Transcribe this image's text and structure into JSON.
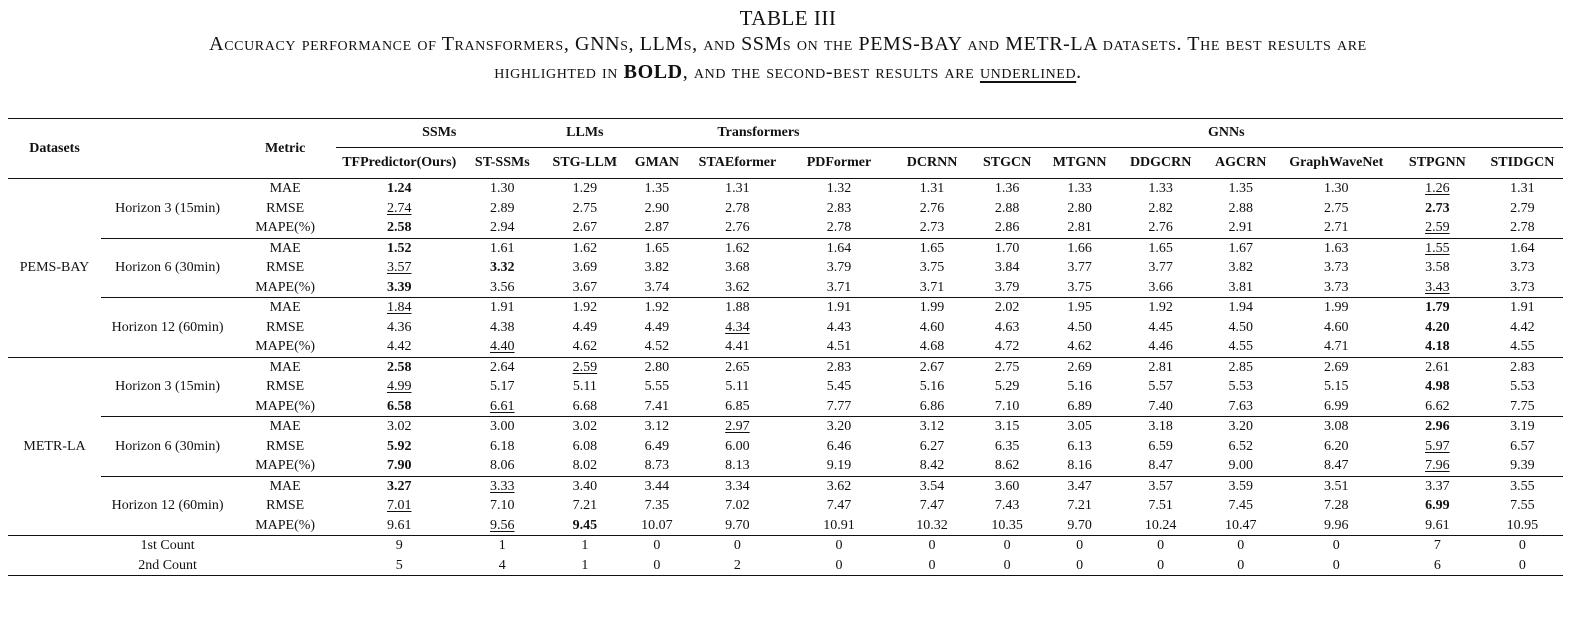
{
  "caption": {
    "title": "TABLE III",
    "line1": "Accuracy performance of Transformers, GNNs, LLMs, and SSMs on the PEMS-BAY and METR-LA datasets. The best results are",
    "line2_pre": "highlighted in ",
    "line2_bold": "BOLD",
    "line2_mid": ", and the second-best results are ",
    "line2_underline": "underlined",
    "line2_post": "."
  },
  "header": {
    "datasets": "Datasets",
    "metric": "Metric",
    "groups": [
      "SSMs",
      "LLMs",
      "Transformers",
      "GNNs"
    ],
    "models": [
      "TFPredictor(Ours)",
      "ST-SSMs",
      "STG-LLM",
      "GMAN",
      "STAEformer",
      "PDFormer",
      "DCRNN",
      "STGCN",
      "MTGNN",
      "DDGCRN",
      "AGCRN",
      "GraphWaveNet",
      "STPGNN",
      "STIDGCN"
    ]
  },
  "datasets": [
    {
      "name": "PEMS-BAY",
      "horizons": [
        {
          "label": "Horizon 3 (15min)",
          "rows": [
            {
              "metric": "MAE",
              "values": [
                "1.24",
                "1.30",
                "1.29",
                "1.35",
                "1.31",
                "1.32",
                "1.31",
                "1.36",
                "1.33",
                "1.33",
                "1.35",
                "1.30",
                "1.26",
                "1.31"
              ],
              "bold": [
                0
              ],
              "under": [
                12
              ]
            },
            {
              "metric": "RMSE",
              "values": [
                "2.74",
                "2.89",
                "2.75",
                "2.90",
                "2.78",
                "2.83",
                "2.76",
                "2.88",
                "2.80",
                "2.82",
                "2.88",
                "2.75",
                "2.73",
                "2.79"
              ],
              "bold": [
                12
              ],
              "under": [
                0
              ]
            },
            {
              "metric": "MAPE(%)",
              "values": [
                "2.58",
                "2.94",
                "2.67",
                "2.87",
                "2.76",
                "2.78",
                "2.73",
                "2.86",
                "2.81",
                "2.76",
                "2.91",
                "2.71",
                "2.59",
                "2.78"
              ],
              "bold": [
                0
              ],
              "under": [
                12
              ]
            }
          ]
        },
        {
          "label": "Horizon 6 (30min)",
          "rows": [
            {
              "metric": "MAE",
              "values": [
                "1.52",
                "1.61",
                "1.62",
                "1.65",
                "1.62",
                "1.64",
                "1.65",
                "1.70",
                "1.66",
                "1.65",
                "1.67",
                "1.63",
                "1.55",
                "1.64"
              ],
              "bold": [
                0
              ],
              "under": [
                12
              ]
            },
            {
              "metric": "RMSE",
              "values": [
                "3.57",
                "3.32",
                "3.69",
                "3.82",
                "3.68",
                "3.79",
                "3.75",
                "3.84",
                "3.77",
                "3.77",
                "3.82",
                "3.73",
                "3.58",
                "3.73"
              ],
              "bold": [
                1
              ],
              "under": [
                0
              ]
            },
            {
              "metric": "MAPE(%)",
              "values": [
                "3.39",
                "3.56",
                "3.67",
                "3.74",
                "3.62",
                "3.71",
                "3.71",
                "3.79",
                "3.75",
                "3.66",
                "3.81",
                "3.73",
                "3.43",
                "3.73"
              ],
              "bold": [
                0
              ],
              "under": [
                12
              ]
            }
          ]
        },
        {
          "label": "Horizon 12 (60min)",
          "rows": [
            {
              "metric": "MAE",
              "values": [
                "1.84",
                "1.91",
                "1.92",
                "1.92",
                "1.88",
                "1.91",
                "1.99",
                "2.02",
                "1.95",
                "1.92",
                "1.94",
                "1.99",
                "1.79",
                "1.91"
              ],
              "bold": [
                12
              ],
              "under": [
                0
              ]
            },
            {
              "metric": "RMSE",
              "values": [
                "4.36",
                "4.38",
                "4.49",
                "4.49",
                "4.34",
                "4.43",
                "4.60",
                "4.63",
                "4.50",
                "4.45",
                "4.50",
                "4.60",
                "4.20",
                "4.42"
              ],
              "bold": [
                12
              ],
              "under": [
                4
              ]
            },
            {
              "metric": "MAPE(%)",
              "values": [
                "4.42",
                "4.40",
                "4.62",
                "4.52",
                "4.41",
                "4.51",
                "4.68",
                "4.72",
                "4.62",
                "4.46",
                "4.55",
                "4.71",
                "4.18",
                "4.55"
              ],
              "bold": [
                12
              ],
              "under": [
                1
              ]
            }
          ]
        }
      ]
    },
    {
      "name": "METR-LA",
      "horizons": [
        {
          "label": "Horizon 3 (15min)",
          "rows": [
            {
              "metric": "MAE",
              "values": [
                "2.58",
                "2.64",
                "2.59",
                "2.80",
                "2.65",
                "2.83",
                "2.67",
                "2.75",
                "2.69",
                "2.81",
                "2.85",
                "2.69",
                "2.61",
                "2.83"
              ],
              "bold": [
                0
              ],
              "under": [
                2
              ]
            },
            {
              "metric": "RMSE",
              "values": [
                "4.99",
                "5.17",
                "5.11",
                "5.55",
                "5.11",
                "5.45",
                "5.16",
                "5.29",
                "5.16",
                "5.57",
                "5.53",
                "5.15",
                "4.98",
                "5.53"
              ],
              "bold": [
                12
              ],
              "under": [
                0
              ]
            },
            {
              "metric": "MAPE(%)",
              "values": [
                "6.58",
                "6.61",
                "6.68",
                "7.41",
                "6.85",
                "7.77",
                "6.86",
                "7.10",
                "6.89",
                "7.40",
                "7.63",
                "6.99",
                "6.62",
                "7.75"
              ],
              "bold": [
                0
              ],
              "under": [
                1
              ]
            }
          ]
        },
        {
          "label": "Horizon 6 (30min)",
          "rows": [
            {
              "metric": "MAE",
              "values": [
                "3.02",
                "3.00",
                "3.02",
                "3.12",
                "2.97",
                "3.20",
                "3.12",
                "3.15",
                "3.05",
                "3.18",
                "3.20",
                "3.08",
                "2.96",
                "3.19"
              ],
              "bold": [
                12
              ],
              "under": [
                4
              ]
            },
            {
              "metric": "RMSE",
              "values": [
                "5.92",
                "6.18",
                "6.08",
                "6.49",
                "6.00",
                "6.46",
                "6.27",
                "6.35",
                "6.13",
                "6.59",
                "6.52",
                "6.20",
                "5.97",
                "6.57"
              ],
              "bold": [
                0
              ],
              "under": [
                12
              ]
            },
            {
              "metric": "MAPE(%)",
              "values": [
                "7.90",
                "8.06",
                "8.02",
                "8.73",
                "8.13",
                "9.19",
                "8.42",
                "8.62",
                "8.16",
                "8.47",
                "9.00",
                "8.47",
                "7.96",
                "9.39"
              ],
              "bold": [
                0
              ],
              "under": [
                12
              ]
            }
          ]
        },
        {
          "label": "Horizon 12 (60min)",
          "rows": [
            {
              "metric": "MAE",
              "values": [
                "3.27",
                "3.33",
                "3.40",
                "3.44",
                "3.34",
                "3.62",
                "3.54",
                "3.60",
                "3.47",
                "3.57",
                "3.59",
                "3.51",
                "3.37",
                "3.55"
              ],
              "bold": [
                0
              ],
              "under": [
                1
              ]
            },
            {
              "metric": "RMSE",
              "values": [
                "7.01",
                "7.10",
                "7.21",
                "7.35",
                "7.02",
                "7.47",
                "7.47",
                "7.43",
                "7.21",
                "7.51",
                "7.45",
                "7.28",
                "6.99",
                "7.55"
              ],
              "bold": [
                12
              ],
              "under": [
                0
              ]
            },
            {
              "metric": "MAPE(%)",
              "values": [
                "9.61",
                "9.56",
                "9.45",
                "10.07",
                "9.70",
                "10.91",
                "10.32",
                "10.35",
                "9.70",
                "10.24",
                "10.47",
                "9.96",
                "9.61",
                "10.95"
              ],
              "bold": [
                2
              ],
              "under": [
                1
              ]
            }
          ]
        }
      ]
    }
  ],
  "counts": [
    {
      "label": "1st Count",
      "values": [
        "9",
        "1",
        "1",
        "0",
        "0",
        "0",
        "0",
        "0",
        "0",
        "0",
        "0",
        "0",
        "7",
        "0"
      ]
    },
    {
      "label": "2nd Count",
      "values": [
        "5",
        "4",
        "1",
        "0",
        "2",
        "0",
        "0",
        "0",
        "0",
        "0",
        "0",
        "0",
        "6",
        "0"
      ]
    }
  ]
}
